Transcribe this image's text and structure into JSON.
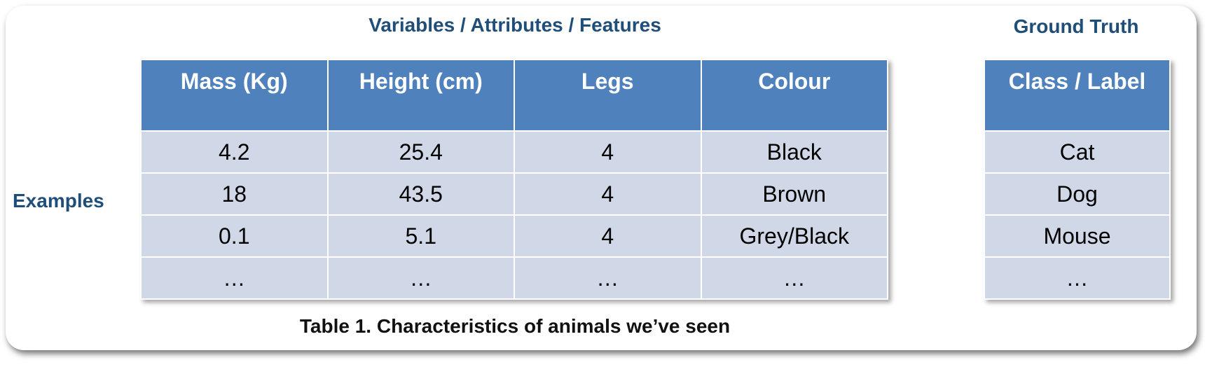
{
  "headings": {
    "variables": "Variables / Attributes / Features",
    "ground_truth": "Ground Truth",
    "examples": "Examples"
  },
  "features_table": {
    "columns": [
      "Mass (Kg)",
      "Height (cm)",
      "Legs",
      "Colour"
    ],
    "rows": [
      [
        "4.2",
        "25.4",
        "4",
        "Black"
      ],
      [
        "18",
        "43.5",
        "4",
        "Brown"
      ],
      [
        "0.1",
        "5.1",
        "4",
        "Grey/Black"
      ],
      [
        "…",
        "…",
        "…",
        "…"
      ]
    ]
  },
  "labels_table": {
    "column": "Class / Label",
    "rows": [
      "Cat",
      "Dog",
      "Mouse",
      "…"
    ]
  },
  "caption": "Table 1. Characteristics of animals we’ve seen",
  "colors": {
    "header_fill": "#4f81bd",
    "row_fill": "#d0d8e8",
    "heading_text": "#1f4e79"
  }
}
